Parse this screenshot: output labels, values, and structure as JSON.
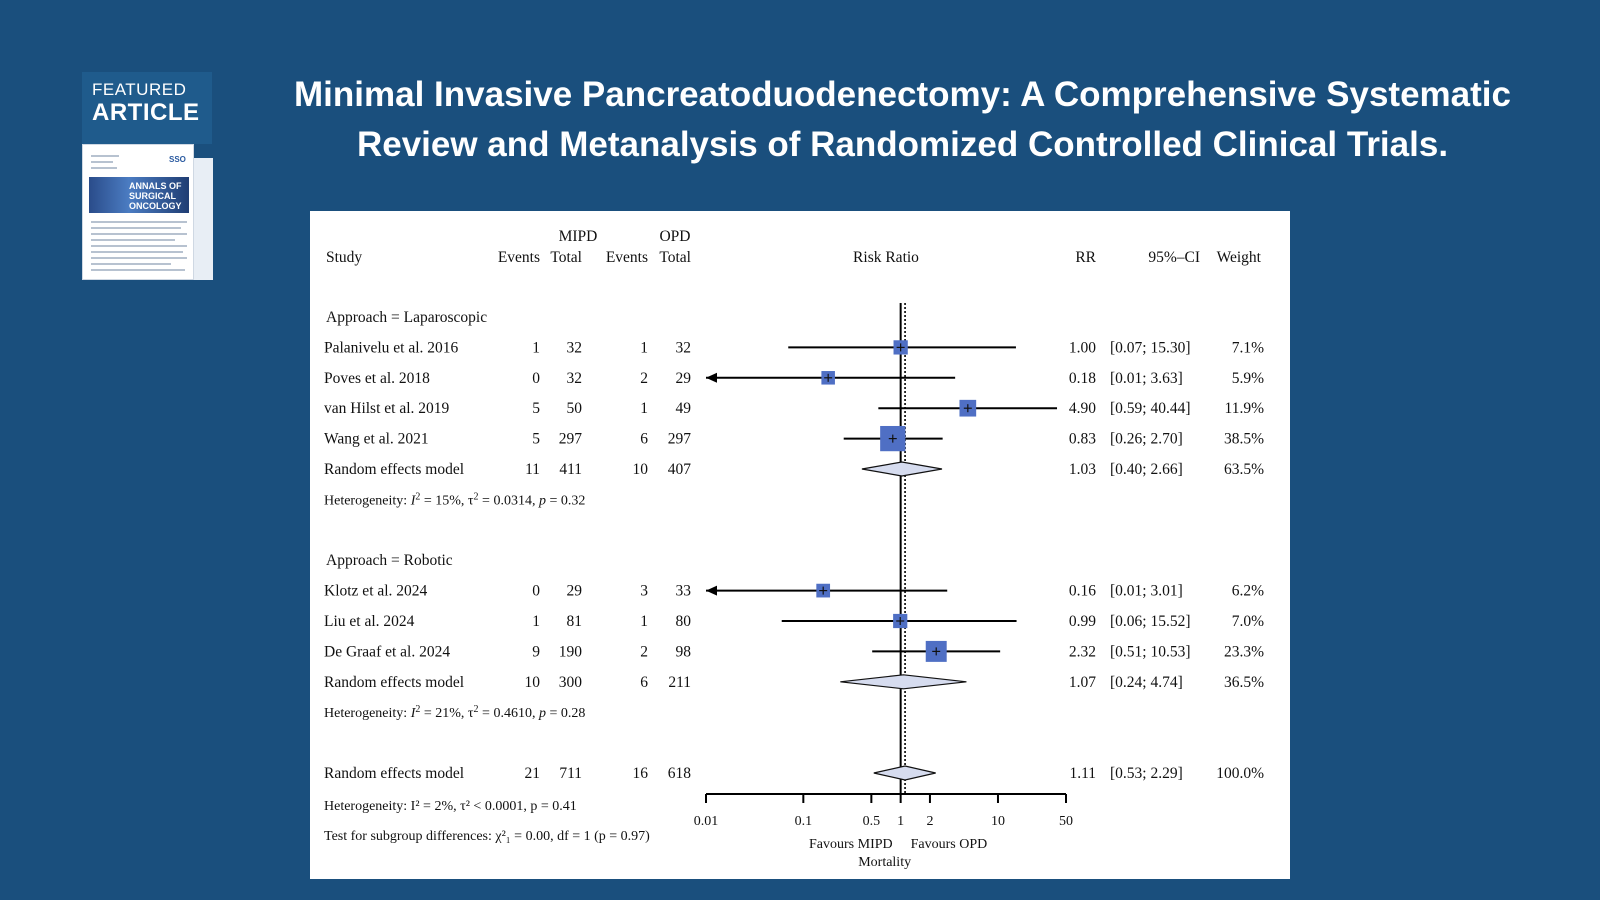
{
  "badge": {
    "featured": "FEATURED",
    "article": "ARTICLE",
    "journal": "ANNALS OF SURGICAL ONCOLOGY",
    "society": "SSO"
  },
  "title_lines": [
    "Minimal Invasive Pancreatoduodenectomy: A Comprehensive Systematic",
    "Review and Metanalysis of Randomized Controlled Clinical Trials."
  ],
  "chart_data": {
    "type": "forest",
    "group_headers": {
      "mipd": "MIPD",
      "opd": "OPD"
    },
    "columns": {
      "study": "Study",
      "events": "Events",
      "total": "Total",
      "risk_ratio": "Risk Ratio",
      "rr": "RR",
      "ci": "95%–CI",
      "weight": "Weight"
    },
    "xscale": "log",
    "xlim": [
      0.01,
      50
    ],
    "xticks": [
      {
        "value": 0.01,
        "label": "0.01"
      },
      {
        "value": 0.1,
        "label": "0.1"
      },
      {
        "value": 0.5,
        "label": "0.5"
      },
      {
        "value": 1,
        "label": "1"
      },
      {
        "value": 2,
        "label": "2"
      },
      {
        "value": 10,
        "label": "10"
      },
      {
        "value": 50,
        "label": "50"
      }
    ],
    "reference_value": 1,
    "xlabel_left": "Favours MIPD",
    "xlabel_right": "Favours OPD",
    "xlabel": "Mortality",
    "subgroups": [
      {
        "header": "Approach = Laparoscopic",
        "studies": [
          {
            "name": "Palanivelu et al. 2016",
            "e1": "1",
            "n1": "32",
            "e2": "1",
            "n2": "32",
            "rr": 1.0,
            "lo": 0.07,
            "hi": 15.3,
            "rr_text": "1.00",
            "ci_text": "[0.07; 15.30]",
            "weight_text": "7.1%",
            "weight": 7.1
          },
          {
            "name": "Poves et al. 2018",
            "e1": "0",
            "n1": "32",
            "e2": "2",
            "n2": "29",
            "rr": 0.18,
            "lo": 0.01,
            "hi": 3.63,
            "rr_text": "0.18",
            "ci_text": "[0.01; 3.63]",
            "weight_text": "5.9%",
            "weight": 5.9
          },
          {
            "name": "van Hilst et al. 2019",
            "e1": "5",
            "n1": "50",
            "e2": "1",
            "n2": "49",
            "rr": 4.9,
            "lo": 0.59,
            "hi": 40.44,
            "rr_text": "4.90",
            "ci_text": "[0.59; 40.44]",
            "weight_text": "11.9%",
            "weight": 11.9
          },
          {
            "name": "Wang et al. 2021",
            "e1": "5",
            "n1": "297",
            "e2": "6",
            "n2": "297",
            "rr": 0.83,
            "lo": 0.26,
            "hi": 2.7,
            "rr_text": "0.83",
            "ci_text": "[0.26; 2.70]",
            "weight_text": "38.5%",
            "weight": 38.5
          }
        ],
        "model": {
          "name": "Random effects model",
          "e1": "11",
          "n1": "411",
          "e2": "10",
          "n2": "407",
          "rr": 1.03,
          "lo": 0.4,
          "hi": 2.66,
          "rr_text": "1.03",
          "ci_text": "[0.40; 2.66]",
          "weight_text": "63.5%"
        },
        "heterogeneity": {
          "prefix": "Heterogeneity: ",
          "i2": "15%",
          "tau2": "0.0314",
          "p": "0.32"
        }
      },
      {
        "header": "Approach = Robotic",
        "studies": [
          {
            "name": "Klotz et al. 2024",
            "e1": "0",
            "n1": "29",
            "e2": "3",
            "n2": "33",
            "rr": 0.16,
            "lo": 0.01,
            "hi": 3.01,
            "rr_text": "0.16",
            "ci_text": "[0.01; 3.01]",
            "weight_text": "6.2%",
            "weight": 6.2
          },
          {
            "name": "Liu et al. 2024",
            "e1": "1",
            "n1": "81",
            "e2": "1",
            "n2": "80",
            "rr": 0.99,
            "lo": 0.06,
            "hi": 15.52,
            "rr_text": "0.99",
            "ci_text": "[0.06; 15.52]",
            "weight_text": "7.0%",
            "weight": 7.0
          },
          {
            "name": "De Graaf et al. 2024",
            "e1": "9",
            "n1": "190",
            "e2": "2",
            "n2": "98",
            "rr": 2.32,
            "lo": 0.51,
            "hi": 10.53,
            "rr_text": "2.32",
            "ci_text": "[0.51; 10.53]",
            "weight_text": "23.3%",
            "weight": 23.3
          }
        ],
        "model": {
          "name": "Random effects model",
          "e1": "10",
          "n1": "300",
          "e2": "6",
          "n2": "211",
          "rr": 1.07,
          "lo": 0.24,
          "hi": 4.74,
          "rr_text": "1.07",
          "ci_text": "[0.24; 4.74]",
          "weight_text": "36.5%"
        },
        "heterogeneity": {
          "prefix": "Heterogeneity: ",
          "i2": "21%",
          "tau2": "0.4610",
          "p": "0.28"
        }
      }
    ],
    "overall": {
      "name": "Random effects model",
      "e1": "21",
      "n1": "711",
      "e2": "16",
      "n2": "618",
      "rr": 1.11,
      "lo": 0.53,
      "hi": 2.29,
      "rr_text": "1.11",
      "ci_text": "[0.53; 2.29]",
      "weight_text": "100.0%"
    },
    "overall_heterogeneity": "Heterogeneity: I² = 2%, τ² < 0.0001, p = 0.41",
    "subgroup_test": "Test for subgroup differences: χ²₁ = 0.00, df = 1 (p = 0.97)",
    "colors": {
      "box": "#4f6fc4",
      "diamond_fill": "#d6dcef",
      "line": "#000000"
    }
  }
}
